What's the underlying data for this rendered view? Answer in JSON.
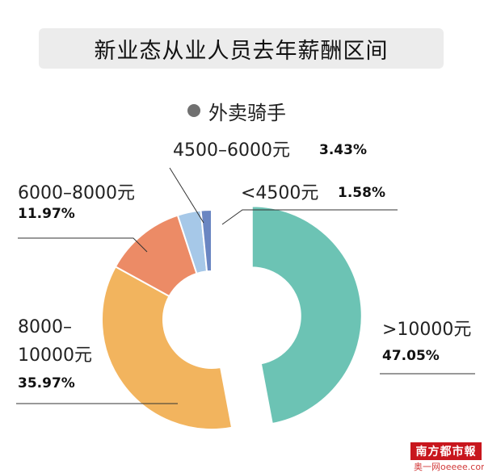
{
  "title": "新业态从业人员去年薪酬区间",
  "legend": {
    "label": "外卖骑手",
    "color": "#707070"
  },
  "chart_data": {
    "type": "pie",
    "title": "新业态从业人员去年薪酬区间",
    "series_name": "外卖骑手",
    "unit": "%",
    "slices": [
      {
        "label": ">10000元",
        "value": 47.05,
        "value_text": "47.05%",
        "color": "#6cc3b4"
      },
      {
        "label": "8000–10000元",
        "value": 35.97,
        "value_text": "35.97%",
        "color": "#f2b45e"
      },
      {
        "label": "6000–8000元",
        "value": 11.97,
        "value_text": "11.97%",
        "color": "#ec8b66"
      },
      {
        "label": "4500–6000元",
        "value": 3.43,
        "value_text": "3.43%",
        "color": "#a6c8e8"
      },
      {
        "label": "<4500元",
        "value": 1.58,
        "value_text": "1.58%",
        "color": "#6a86c2"
      }
    ]
  },
  "labels": {
    "s0_name": ">10000元",
    "s1_name_line1": "8000–",
    "s1_name_line2": "10000元",
    "s2_name": "6000–8000元",
    "s3_name": "4500–6000元",
    "s4_name": "<4500元"
  },
  "brand": {
    "name": "南方都市報",
    "watermark": "奥一网oeeee.com"
  }
}
